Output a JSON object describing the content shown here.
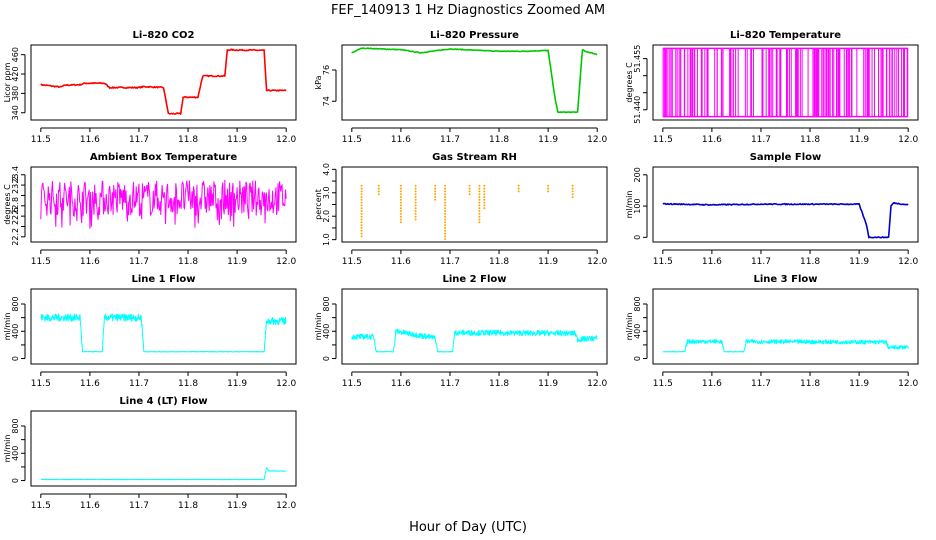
{
  "figure": {
    "title": "FEF_140913 1 Hz Diagnostics Zoomed AM",
    "xlabel": "Hour of Day (UTC)"
  },
  "chart_data": [
    {
      "type": "line",
      "title": "Li–820 CO2",
      "ylabel": "Licor ppm",
      "color": "#ff0000",
      "xlim": [
        11.48,
        12.02
      ],
      "xticks": [
        11.5,
        11.6,
        11.7,
        11.8,
        11.9,
        12.0
      ],
      "xticklabels": [
        "11.5",
        "11.6",
        "11.7",
        "11.8",
        "11.9",
        "12.0"
      ],
      "ylim": [
        325,
        480
      ],
      "yticks": [
        340,
        380,
        420,
        460
      ],
      "yticklabels": [
        "340",
        "380",
        "420",
        "460"
      ],
      "series": [
        {
          "x": [
            11.5,
            11.54,
            11.55,
            11.58,
            11.59,
            11.63,
            11.64,
            11.7,
            11.71,
            11.75,
            11.76,
            11.77,
            11.785,
            11.79,
            11.82,
            11.83,
            11.875,
            11.88,
            11.955,
            11.96,
            12.0
          ],
          "y": [
            398,
            393,
            397,
            398,
            401,
            401,
            392,
            392,
            394,
            392,
            338,
            338,
            338,
            372,
            372,
            416,
            416,
            470,
            469,
            386,
            386
          ]
        }
      ]
    },
    {
      "type": "line",
      "title": "Li–820 Pressure",
      "ylabel": "kPa",
      "color": "#00c800",
      "xlim": [
        11.48,
        12.02
      ],
      "xticks": [
        11.5,
        11.6,
        11.7,
        11.8,
        11.9,
        12.0
      ],
      "xticklabels": [
        "11.5",
        "11.6",
        "11.7",
        "11.8",
        "11.9",
        "12.0"
      ],
      "ylim": [
        72.8,
        77.6
      ],
      "yticks": [
        74,
        76
      ],
      "yticklabels": [
        "74",
        "76"
      ],
      "series": [
        {
          "x": [
            11.5,
            11.52,
            11.6,
            11.64,
            11.7,
            11.76,
            11.8,
            11.85,
            11.9,
            11.915,
            11.92,
            11.925,
            11.96,
            11.97,
            11.975,
            12.0
          ],
          "y": [
            77.1,
            77.4,
            77.3,
            77.1,
            77.35,
            77.25,
            77.2,
            77.2,
            77.25,
            74.0,
            73.3,
            73.3,
            73.3,
            77.3,
            77.2,
            77.0
          ]
        }
      ]
    },
    {
      "type": "line",
      "title": "Li–820 Temperature",
      "ylabel": "degrees C",
      "color": "#ff00ff",
      "xlim": [
        11.48,
        12.02
      ],
      "xticks": [
        11.5,
        11.6,
        11.7,
        11.8,
        11.9,
        12.0
      ],
      "xticklabels": [
        "11.5",
        "11.6",
        "11.7",
        "11.8",
        "11.9",
        "12.0"
      ],
      "ylim": [
        51.437,
        51.459
      ],
      "yticks": [
        51.44,
        51.445,
        51.45,
        51.455
      ],
      "yticklabels": [
        "51.440",
        "",
        "",
        "51.455"
      ],
      "series": [
        {
          "x": [
            11.5,
            12.0
          ],
          "y": [
            51.438,
            51.458
          ]
        }
      ]
    },
    {
      "type": "line",
      "title": "Ambient Box Temperature",
      "ylabel": "degrees C",
      "color": "#ff00ff",
      "xlim": [
        11.48,
        12.02
      ],
      "xticks": [
        11.5,
        11.6,
        11.7,
        11.8,
        11.9,
        12.0
      ],
      "xticklabels": [
        "11.5",
        "11.6",
        "11.7",
        "11.8",
        "11.9",
        "12.0"
      ],
      "ylim": [
        22.1,
        23.55
      ],
      "yticks": [
        22.2,
        22.4,
        22.6,
        22.8,
        23.0,
        23.2,
        23.4
      ],
      "yticklabels": [
        "22.2",
        "",
        "22.6",
        "22.8",
        "",
        "23.2",
        "23.4"
      ],
      "series": [
        {
          "x": [
            11.5,
            12.0
          ],
          "y": [
            22.85,
            23.05
          ]
        }
      ]
    },
    {
      "type": "scatter",
      "title": "Gas Stream RH",
      "ylabel": "percent",
      "color": "#ffa500",
      "xlim": [
        11.48,
        12.02
      ],
      "xticks": [
        11.5,
        11.6,
        11.7,
        11.8,
        11.9,
        12.0
      ],
      "xticklabels": [
        "11.5",
        "11.6",
        "11.7",
        "11.8",
        "11.9",
        "12.0"
      ],
      "ylim": [
        0.9,
        4.1
      ],
      "yticks": [
        1.0,
        1.5,
        2.0,
        2.5,
        3.0,
        3.5,
        4.0
      ],
      "yticklabels": [
        "1.0",
        "",
        "2.0",
        "",
        "3.0",
        "",
        "4.0"
      ],
      "series": [
        {
          "x": [
            11.5,
            11.52,
            11.6,
            11.63,
            11.69,
            11.76,
            11.77,
            12.0
          ],
          "y": [
            3.5,
            1.1,
            1.7,
            1.8,
            0.95,
            1.7,
            2.3,
            3.5
          ]
        }
      ]
    },
    {
      "type": "line",
      "title": "Sample Flow",
      "ylabel": "ml/min",
      "color": "#0000cc",
      "xlim": [
        11.48,
        12.02
      ],
      "xticks": [
        11.5,
        11.6,
        11.7,
        11.8,
        11.9,
        12.0
      ],
      "xticklabels": [
        "11.5",
        "11.6",
        "11.7",
        "11.8",
        "11.9",
        "12.0"
      ],
      "ylim": [
        -15,
        225
      ],
      "yticks": [
        0,
        100,
        200
      ],
      "yticklabels": [
        "0",
        "100",
        "200"
      ],
      "series": [
        {
          "x": [
            11.5,
            11.6,
            11.7,
            11.8,
            11.9,
            11.915,
            11.92,
            11.96,
            11.965,
            11.97,
            12.0
          ],
          "y": [
            107,
            104,
            106,
            106,
            106,
            40,
            0,
            0,
            100,
            110,
            104
          ]
        }
      ]
    },
    {
      "type": "line",
      "title": "Line 1 Flow",
      "ylabel": "ml/min",
      "color": "#00ffff",
      "xlim": [
        11.48,
        12.02
      ],
      "xticks": [
        11.5,
        11.6,
        11.7,
        11.8,
        11.9,
        12.0
      ],
      "xticklabels": [
        "11.5",
        "11.6",
        "11.7",
        "11.8",
        "11.9",
        "12.0"
      ],
      "ylim": [
        -80,
        1020
      ],
      "yticks": [
        0,
        200,
        400,
        600,
        800
      ],
      "yticklabels": [
        "0",
        "",
        "400",
        "",
        "800"
      ],
      "series": [
        {
          "x": [
            11.5,
            11.58,
            11.585,
            11.625,
            11.63,
            11.705,
            11.71,
            11.955,
            11.96,
            12.0
          ],
          "y": [
            600,
            600,
            100,
            100,
            600,
            600,
            100,
            100,
            550,
            550
          ]
        }
      ]
    },
    {
      "type": "line",
      "title": "Line 2 Flow",
      "ylabel": "ml/min",
      "color": "#00ffff",
      "xlim": [
        11.48,
        12.02
      ],
      "xticks": [
        11.5,
        11.6,
        11.7,
        11.8,
        11.9,
        12.0
      ],
      "xticklabels": [
        "11.5",
        "11.6",
        "11.7",
        "11.8",
        "11.9",
        "12.0"
      ],
      "ylim": [
        -80,
        1020
      ],
      "yticks": [
        0,
        200,
        400,
        600,
        800
      ],
      "yticklabels": [
        "0",
        "",
        "400",
        "",
        "800"
      ],
      "series": [
        {
          "x": [
            11.5,
            11.545,
            11.55,
            11.585,
            11.59,
            11.67,
            11.675,
            11.705,
            11.71,
            11.955,
            11.96,
            12.0
          ],
          "y": [
            320,
            320,
            100,
            100,
            400,
            300,
            100,
            100,
            380,
            370,
            280,
            300
          ]
        }
      ]
    },
    {
      "type": "line",
      "title": "Line 3 Flow",
      "ylabel": "ml/min",
      "color": "#00ffff",
      "xlim": [
        11.48,
        12.02
      ],
      "xticks": [
        11.5,
        11.6,
        11.7,
        11.8,
        11.9,
        12.0
      ],
      "xticklabels": [
        "11.5",
        "11.6",
        "11.7",
        "11.8",
        "11.9",
        "12.0"
      ],
      "ylim": [
        -80,
        1020
      ],
      "yticks": [
        0,
        200,
        400,
        600,
        800
      ],
      "yticklabels": [
        "0",
        "",
        "400",
        "",
        "800"
      ],
      "series": [
        {
          "x": [
            11.5,
            11.545,
            11.55,
            11.62,
            11.625,
            11.665,
            11.67,
            11.955,
            11.96,
            12.0
          ],
          "y": [
            100,
            100,
            250,
            250,
            100,
            100,
            250,
            240,
            160,
            170
          ]
        }
      ]
    },
    {
      "type": "line",
      "title": "Line 4 (LT) Flow",
      "ylabel": "ml/min",
      "color": "#00ffff",
      "xlim": [
        11.48,
        12.02
      ],
      "xticks": [
        11.5,
        11.6,
        11.7,
        11.8,
        11.9,
        12.0
      ],
      "xticklabels": [
        "11.5",
        "11.6",
        "11.7",
        "11.8",
        "11.9",
        "12.0"
      ],
      "ylim": [
        -80,
        1020
      ],
      "yticks": [
        0,
        200,
        400,
        600,
        800
      ],
      "yticklabels": [
        "0",
        "",
        "400",
        "",
        "800"
      ],
      "series": [
        {
          "x": [
            11.5,
            11.955,
            11.96,
            11.965,
            12.0
          ],
          "y": [
            15,
            15,
            190,
            140,
            140
          ]
        }
      ]
    }
  ]
}
